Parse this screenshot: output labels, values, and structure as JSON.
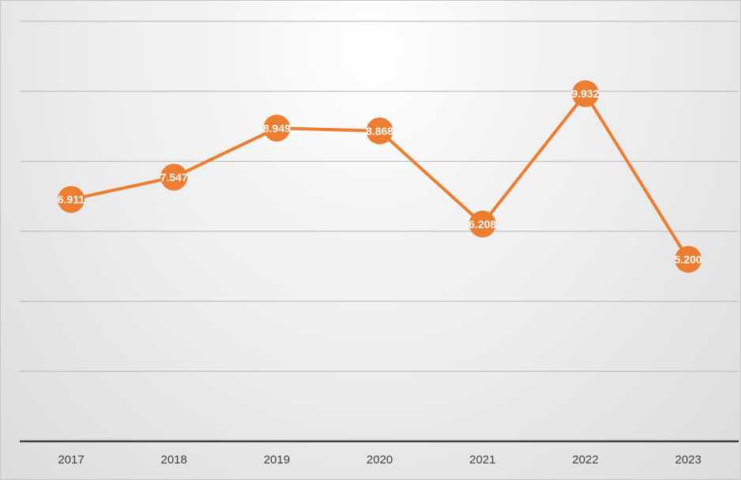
{
  "chart_data": {
    "type": "line",
    "categories": [
      "2017",
      "2018",
      "2019",
      "2020",
      "2021",
      "2022",
      "2023"
    ],
    "series": [
      {
        "values": [
          6.911,
          7.547,
          8.949,
          8.868,
          6.208,
          9.932,
          5.2
        ],
        "data_labels": [
          "6.911",
          "7.547",
          "8.949",
          "8.868",
          "6.208",
          "9.932",
          "5.200"
        ]
      }
    ],
    "ylim": [
      0,
      12
    ],
    "y_gridline_step": 2,
    "y_tick_labels_visible": false,
    "grid": true,
    "legend": "none",
    "title": "",
    "xlabel": "",
    "ylabel": "",
    "colors": {
      "series": "#ED7D31",
      "gridline": "#B9B9B9",
      "axis": "#404040"
    }
  }
}
